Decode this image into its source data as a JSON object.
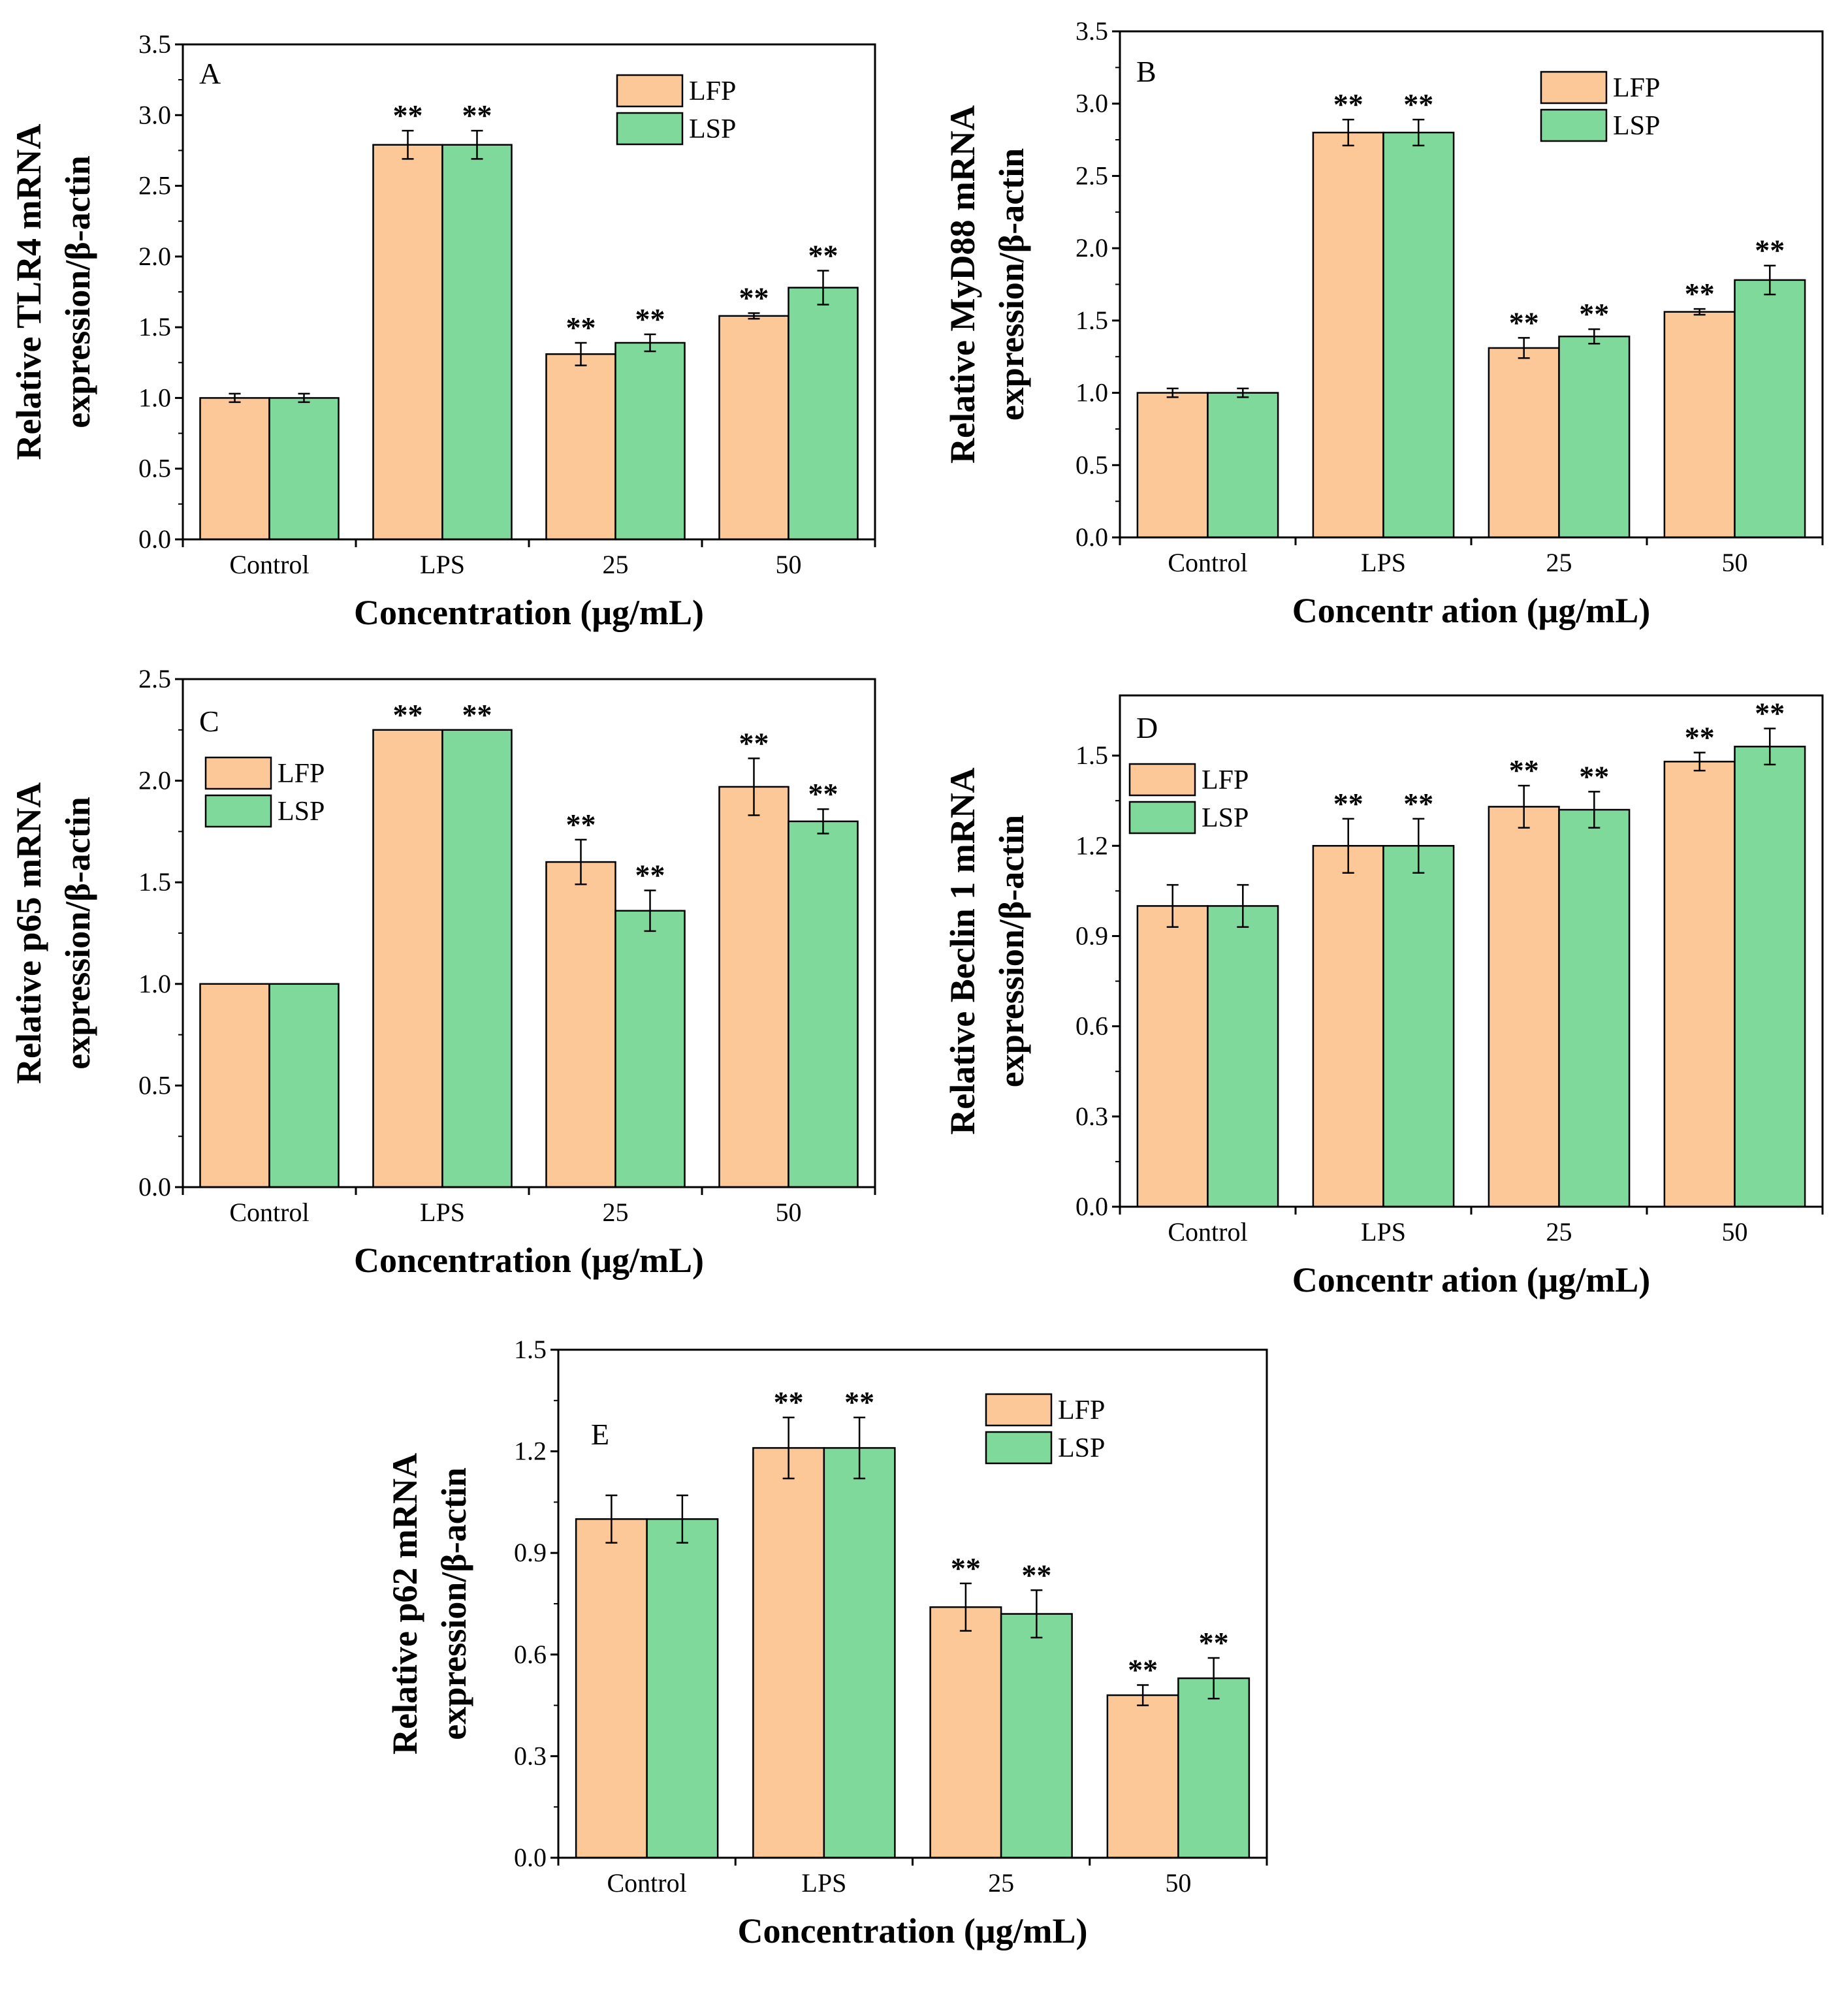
{
  "chart_data": [
    {
      "type": "bar",
      "panel": "A",
      "categories": [
        "Control",
        "LPS",
        "25",
        "50"
      ],
      "series": [
        {
          "name": "LFP",
          "values": [
            1.0,
            2.79,
            1.31,
            1.58
          ],
          "errors": [
            0.03,
            0.1,
            0.08,
            0.02
          ]
        },
        {
          "name": "LSP",
          "values": [
            1.0,
            2.79,
            1.39,
            1.78
          ],
          "errors": [
            0.03,
            0.1,
            0.06,
            0.12
          ]
        }
      ],
      "significance": [
        [
          "",
          "**",
          "**",
          "**"
        ],
        [
          "",
          "**",
          "**",
          "**"
        ]
      ],
      "ylabel_lines": [
        "Relative TLR4  mRNA",
        "expression/β-actin"
      ],
      "xlabel": "Concentration (μg/mL)",
      "ylim": [
        0,
        3.5
      ],
      "yticks": [
        "0.0",
        "0.5",
        "1.0",
        "1.5",
        "2.0",
        "2.5",
        "3.0",
        "3.5"
      ],
      "legend": "top-right"
    },
    {
      "type": "bar",
      "panel": "B",
      "categories": [
        "Control",
        "LPS",
        "25",
        "50"
      ],
      "series": [
        {
          "name": "LFP",
          "values": [
            1.0,
            2.8,
            1.31,
            1.56
          ],
          "errors": [
            0.03,
            0.09,
            0.07,
            0.02
          ]
        },
        {
          "name": "LSP",
          "values": [
            1.0,
            2.8,
            1.39,
            1.78
          ],
          "errors": [
            0.03,
            0.09,
            0.05,
            0.1
          ]
        }
      ],
      "significance": [
        [
          "",
          "**",
          "**",
          "**"
        ],
        [
          "",
          "**",
          "**",
          "**"
        ]
      ],
      "ylabel_lines": [
        "Relative MyD88 mRNA",
        "expression/β-actin"
      ],
      "xlabel": "Concentr ation (μg/mL)",
      "ylim": [
        0,
        3.5
      ],
      "yticks": [
        "0.0",
        "0.5",
        "1.0",
        "1.5",
        "2.0",
        "2.5",
        "3.0",
        "3.5"
      ],
      "legend": "top-right"
    },
    {
      "type": "bar",
      "panel": "C",
      "categories": [
        "Control",
        "LPS",
        "25",
        "50"
      ],
      "series": [
        {
          "name": "LFP",
          "values": [
            1.0,
            2.25,
            1.6,
            1.97
          ],
          "errors": [
            0,
            0,
            0.11,
            0.14
          ]
        },
        {
          "name": "LSP",
          "values": [
            1.0,
            2.25,
            1.36,
            1.8
          ],
          "errors": [
            0,
            0,
            0.1,
            0.06
          ]
        }
      ],
      "significance": [
        [
          "",
          "**",
          "**",
          "**"
        ],
        [
          "",
          "**",
          "**",
          "**"
        ]
      ],
      "ylabel_lines": [
        "Relative p65 mRNA",
        "expression/β-actin"
      ],
      "xlabel": "Concentration (μg/mL)",
      "ylim": [
        0,
        2.5
      ],
      "yticks": [
        "0.0",
        "0.5",
        "1.0",
        "1.5",
        "2.0",
        "2.5"
      ],
      "legend": "top-left"
    },
    {
      "type": "bar",
      "panel": "D",
      "categories": [
        "Control",
        "LPS",
        "25",
        "50"
      ],
      "series": [
        {
          "name": "LFP",
          "values": [
            1.0,
            1.2,
            1.33,
            1.48
          ],
          "errors": [
            0.07,
            0.09,
            0.07,
            0.03
          ]
        },
        {
          "name": "LSP",
          "values": [
            1.0,
            1.2,
            1.32,
            1.53
          ],
          "errors": [
            0.07,
            0.09,
            0.06,
            0.06
          ]
        }
      ],
      "significance": [
        [
          "",
          "**",
          "**",
          "**"
        ],
        [
          "",
          "**",
          "**",
          "**"
        ]
      ],
      "ylabel_lines": [
        "Relative Beclin 1 mRNA",
        "expression/β-actin"
      ],
      "xlabel": "Concentr ation (μg/mL)",
      "ylim": [
        0,
        1.7
      ],
      "yticks": [
        "0.0",
        "0.3",
        "0.6",
        "0.9",
        "1.2",
        "1.5"
      ],
      "legend": "top-left"
    },
    {
      "type": "bar",
      "panel": "E",
      "categories": [
        "Control",
        "LPS",
        "25",
        "50"
      ],
      "series": [
        {
          "name": "LFP",
          "values": [
            1.0,
            1.21,
            0.74,
            0.48
          ],
          "errors": [
            0.07,
            0.09,
            0.07,
            0.03
          ]
        },
        {
          "name": "LSP",
          "values": [
            1.0,
            1.21,
            0.72,
            0.53
          ],
          "errors": [
            0.07,
            0.09,
            0.07,
            0.06
          ]
        }
      ],
      "significance": [
        [
          "",
          "**",
          "**",
          "**"
        ],
        [
          "",
          "**",
          "**",
          "**"
        ]
      ],
      "ylabel_lines": [
        "Relative p62 mRNA",
        "expression/β-actin"
      ],
      "xlabel": "Concentration (μg/mL)",
      "ylim": [
        0,
        1.5
      ],
      "yticks": [
        "0.0",
        "0.3",
        "0.6",
        "0.9",
        "1.2",
        "1.5"
      ],
      "legend": "top-right"
    }
  ],
  "colors": {
    "LFP": "#fdc898",
    "LSP": "#7fd99a",
    "axis": "#000000",
    "background": "#ffffff"
  }
}
